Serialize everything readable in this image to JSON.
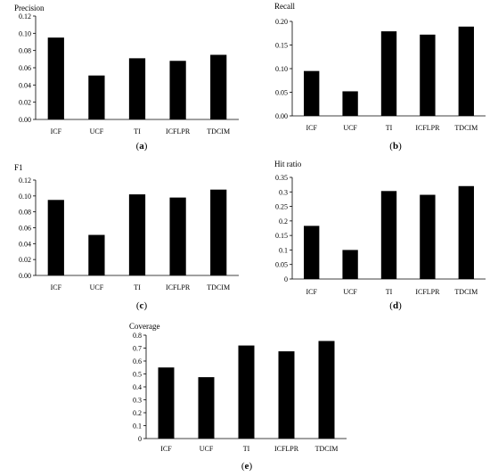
{
  "chart_data": [
    {
      "type": "bar",
      "title": "Precision",
      "caption": "(a)",
      "categories": [
        "ICF",
        "UCF",
        "TI",
        "ICFLPR",
        "TDCIM"
      ],
      "values": [
        0.095,
        0.051,
        0.071,
        0.068,
        0.075
      ],
      "ylim": [
        0,
        0.12
      ],
      "yticks": [
        "0.00",
        "0.02",
        "0.04",
        "0.06",
        "0.08",
        "0.10",
        "0.12"
      ],
      "grid": false,
      "bar_color": "#000000"
    },
    {
      "type": "bar",
      "title": "Recall",
      "caption": "(b)",
      "categories": [
        "ICF",
        "UCF",
        "TI",
        "ICFLPR",
        "TDCIM"
      ],
      "values": [
        0.095,
        0.052,
        0.179,
        0.172,
        0.189
      ],
      "ylim": [
        0,
        0.2
      ],
      "yticks": [
        "0.00",
        "0.05",
        "0.10",
        "0.15",
        "0.20"
      ],
      "grid": false,
      "bar_color": "#000000"
    },
    {
      "type": "bar",
      "title": "F1",
      "caption": "(c)",
      "categories": [
        "ICF",
        "UCF",
        "TI",
        "ICFLPR",
        "TDCIM"
      ],
      "values": [
        0.095,
        0.051,
        0.102,
        0.098,
        0.108
      ],
      "ylim": [
        0,
        0.12
      ],
      "yticks": [
        "0.00",
        "0.02",
        "0.04",
        "0.06",
        "0.08",
        "0.10",
        "0.12"
      ],
      "grid": false,
      "bar_color": "#000000"
    },
    {
      "type": "bar",
      "title": "Hit ratio",
      "caption": "(d)",
      "categories": [
        "ICF",
        "UCF",
        "TI",
        "ICFLPR",
        "TDCIM"
      ],
      "values": [
        0.183,
        0.1,
        0.303,
        0.29,
        0.32
      ],
      "ylim": [
        0,
        0.35
      ],
      "yticks": [
        "0",
        "0.05",
        "0.1",
        "0.15",
        "0.2",
        "0.25",
        "0.3",
        "0.35"
      ],
      "grid": false,
      "bar_color": "#000000"
    },
    {
      "type": "bar",
      "title": "Coverage",
      "caption": "(e)",
      "categories": [
        "ICF",
        "UCF",
        "TI",
        "ICFLPR",
        "TDCIM"
      ],
      "values": [
        0.55,
        0.475,
        0.72,
        0.675,
        0.755
      ],
      "ylim": [
        0,
        0.8
      ],
      "yticks": [
        "0",
        "0.1",
        "0.2",
        "0.3",
        "0.4",
        "0.5",
        "0.6",
        "0.7",
        "0.8"
      ],
      "grid": false,
      "bar_color": "#000000"
    }
  ]
}
